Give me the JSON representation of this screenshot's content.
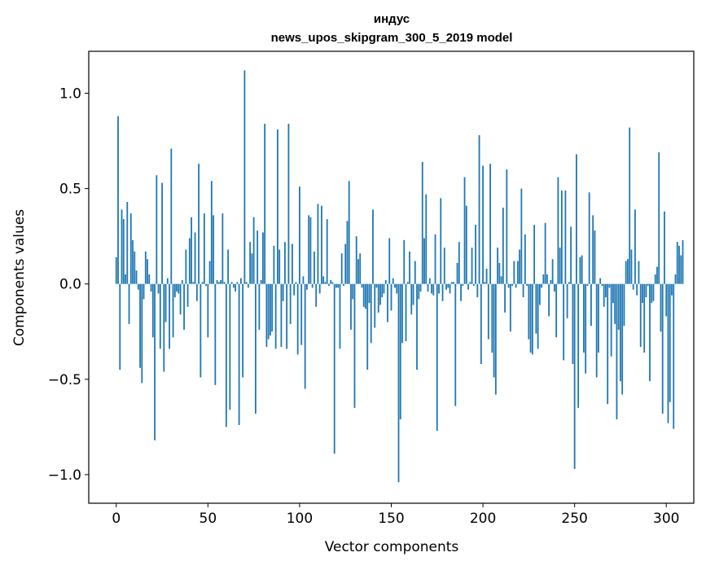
{
  "chart_data": {
    "type": "bar",
    "title_line1": "индус",
    "title_line2": "news_upos_skipgram_300_5_2019 model",
    "xlabel": "Vector components",
    "ylabel": "Components values",
    "xlim": [
      -15,
      315
    ],
    "ylim": [
      -1.15,
      1.22
    ],
    "x_ticks": [
      0,
      50,
      100,
      150,
      200,
      250,
      300
    ],
    "x_tick_labels": [
      "0",
      "50",
      "100",
      "150",
      "200",
      "250",
      "300"
    ],
    "y_ticks": [
      -1.0,
      -0.5,
      0.0,
      0.5,
      1.0
    ],
    "y_tick_labels": [
      "−1.0",
      "−0.5",
      "0.0",
      "0.5",
      "1.0"
    ],
    "bar_color": "#1f77b4",
    "grid": false,
    "values": [
      0.14,
      0.88,
      -0.45,
      0.39,
      0.34,
      0.05,
      0.43,
      -0.21,
      0.37,
      0.23,
      0.17,
      0.07,
      -0.03,
      -0.44,
      -0.52,
      -0.08,
      0.17,
      0.13,
      0.05,
      -0.04,
      -0.28,
      -0.82,
      0.57,
      -0.05,
      -0.34,
      0.53,
      -0.46,
      -0.2,
      0.03,
      -0.34,
      0.71,
      -0.28,
      -0.07,
      -0.04,
      -0.05,
      -0.16,
      0.02,
      -0.24,
      0.18,
      -0.12,
      0.24,
      0.35,
      0.01,
      0.27,
      -0.09,
      0.63,
      -0.49,
      0.01,
      0.37,
      -0.01,
      -0.28,
      0.12,
      0.54,
      0.36,
      -0.53,
      0.02,
      0.01,
      0.02,
      0.37,
      0.01,
      -0.75,
      0.18,
      -0.66,
      0.01,
      -0.02,
      -0.04,
      0.01,
      -0.74,
      0.03,
      -0.49,
      1.12,
      0.01,
      -0.02,
      0.22,
      0.16,
      0.35,
      -0.68,
      0.28,
      -0.24,
      0.02,
      0.27,
      0.84,
      -0.33,
      -0.29,
      -0.27,
      -0.25,
      0.2,
      -0.34,
      0.81,
      0.18,
      -0.33,
      -0.09,
      0.22,
      -0.34,
      0.84,
      -0.21,
      0.21,
      -0.06,
      0.01,
      -0.37,
      0.51,
      -0.32,
      0.04,
      -0.55,
      -0.03,
      0.36,
      0.35,
      -0.02,
      0.17,
      -0.12,
      0.42,
      -0.05,
      0.41,
      0.04,
      0.01,
      0.34,
      -0.01,
      0.02,
      0.01,
      -0.89,
      -0.02,
      -0.02,
      -0.34,
      0.16,
      -0.01,
      0.21,
      0.33,
      0.54,
      -0.24,
      -0.08,
      -0.65,
      0.25,
      0.13,
      0.16,
      -0.02,
      -0.12,
      -0.13,
      -0.45,
      -0.1,
      -0.31,
      0.39,
      -0.23,
      -0.02,
      -0.15,
      -0.11,
      -0.07,
      -0.05,
      0.02,
      -0.2,
      0.24,
      -0.14,
      0.03,
      -0.02,
      -0.05,
      -1.04,
      -0.71,
      -0.31,
      0.23,
      -0.3,
      0.01,
      0.17,
      -0.16,
      -0.11,
      0.12,
      -0.45,
      -0.08,
      -0.04,
      0.64,
      0.24,
      0.47,
      -0.04,
      0.03,
      -0.05,
      -0.06,
      0.26,
      -0.77,
      -0.05,
      0.45,
      -0.09,
      0.19,
      -0.03,
      -0.02,
      -0.05,
      0.01,
      0.01,
      -0.64,
      0.11,
      0.22,
      -0.09,
      -0.01,
      0.56,
      0.41,
      -0.03,
      0.01,
      0.19,
      -0.01,
      0.31,
      -0.07,
      0.78,
      -0.42,
      0.62,
      0.01,
      0.08,
      -0.29,
      0.63,
      -0.36,
      -0.49,
      -0.58,
      0.19,
      0.11,
      0.04,
      0.4,
      -0.15,
      0.6,
      -0.02,
      -0.25,
      -0.01,
      0.12,
      -0.02,
      0.12,
      0.18,
      0.5,
      -0.07,
      0.26,
      -0.01,
      -0.29,
      -0.36,
      -0.37,
      0.31,
      -0.26,
      -0.34,
      -0.11,
      -0.02,
      0.05,
      0.32,
      0.05,
      -0.17,
      0.02,
      0.13,
      -0.04,
      -0.28,
      0.56,
      0.19,
      0.49,
      -0.4,
      0.49,
      -0.18,
      0.01,
      0.3,
      -0.42,
      -0.97,
      0.68,
      -0.65,
      0.14,
      0.15,
      -0.36,
      -0.47,
      -0.01,
      0.48,
      -0.22,
      0.36,
      0.28,
      -0.49,
      -0.36,
      0.03,
      -0.01,
      -0.12,
      -0.07,
      -0.63,
      -0.02,
      -0.38,
      -0.1,
      -0.21,
      -0.71,
      -0.24,
      -0.51,
      -0.58,
      -0.22,
      0.12,
      0.13,
      0.82,
      0.18,
      -0.03,
      0.39,
      -0.06,
      0.12,
      -0.33,
      -0.1,
      -0.36,
      -0.07,
      -0.01,
      -0.51,
      -0.1,
      -0.09,
      0.05,
      0.09,
      0.69,
      -0.25,
      -0.68,
      0.38,
      -0.17,
      -0.73,
      -0.62,
      -0.06,
      -0.76,
      0.05,
      0.22,
      0.2,
      0.15,
      0.23
    ]
  }
}
